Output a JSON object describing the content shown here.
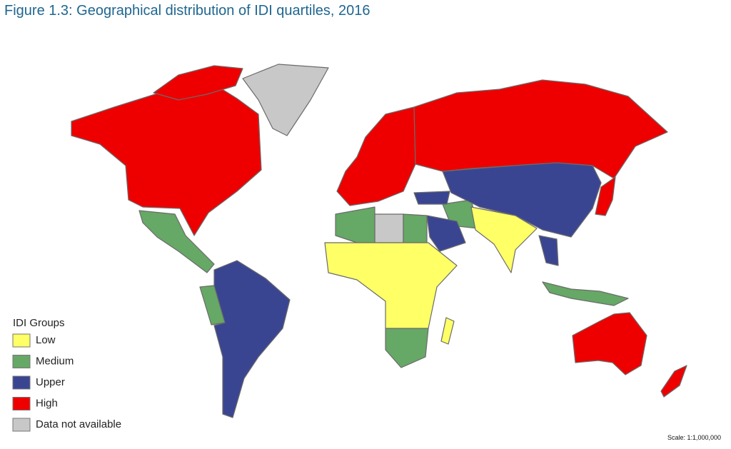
{
  "title": "Figure 1.3: Geographical distribution of IDI quartiles, 2016",
  "legend": {
    "title": "IDI Groups",
    "items": [
      {
        "label": "Low",
        "color": "#ffff66"
      },
      {
        "label": "Medium",
        "color": "#66a866"
      },
      {
        "label": "Upper",
        "color": "#3a4592"
      },
      {
        "label": "High",
        "color": "#ee0000"
      },
      {
        "label": "Data not available",
        "color": "#c8c8c8"
      }
    ]
  },
  "scale": "Scale: 1:1,000,000"
}
